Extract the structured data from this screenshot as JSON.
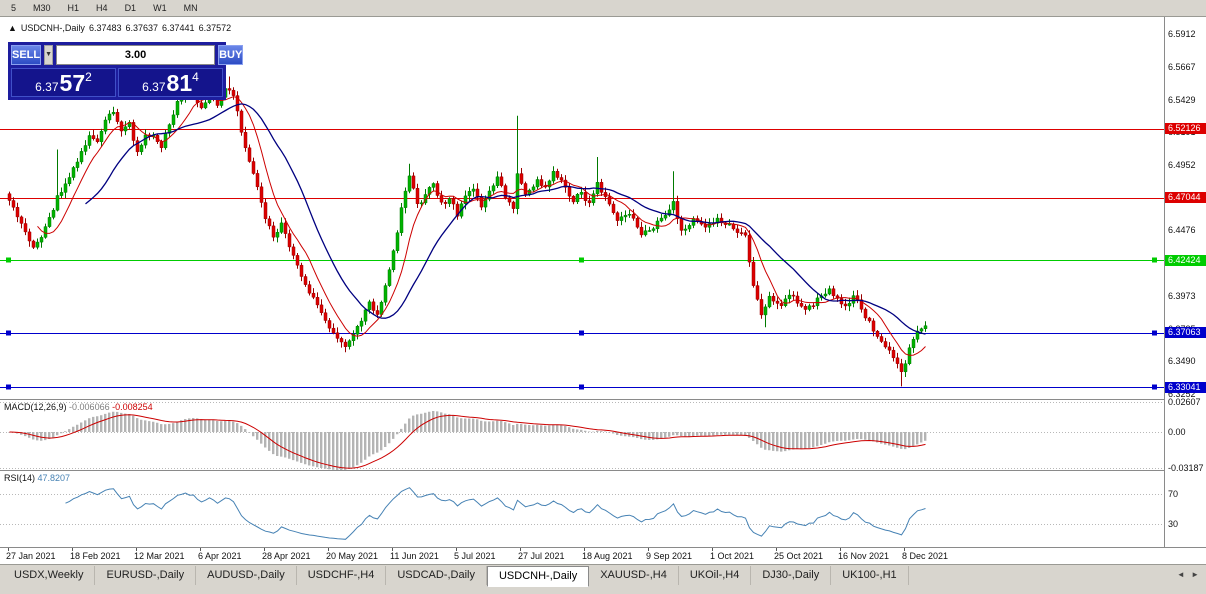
{
  "toolbar": {
    "periods": [
      "5",
      "M30",
      "H1",
      "H4",
      "D1",
      "W1",
      "MN"
    ]
  },
  "chart": {
    "collapse_icon": "▲",
    "symbol_period": "USDCNH-,Daily",
    "open": "6.37483",
    "high": "6.37637",
    "low": "6.37441",
    "close": "6.37572",
    "price_ticks": [
      "6.5912",
      "6.5667",
      "6.5429",
      "6.5191",
      "6.4952",
      "6.4714",
      "6.4476",
      "6.4238",
      "6.3973",
      "6.3735",
      "6.3490",
      "6.3252"
    ],
    "levels": [
      {
        "value": "6.52126",
        "price": 6.52126,
        "color": "red",
        "selected": false
      },
      {
        "value": "6.47044",
        "price": 6.47044,
        "color": "red",
        "selected": false
      },
      {
        "value": "6.42424",
        "price": 6.42424,
        "color": "green",
        "selected": true
      },
      {
        "value": "6.37063",
        "price": 6.37063,
        "color": "blue",
        "selected": true
      },
      {
        "value": "6.33041",
        "price": 6.33041,
        "color": "blue",
        "selected": true
      }
    ],
    "dates": [
      {
        "label": "27 Jan 2021",
        "day": 0
      },
      {
        "label": "18 Feb 2021",
        "day": 16
      },
      {
        "label": "12 Mar 2021",
        "day": 32
      },
      {
        "label": "6 Apr 2021",
        "day": 48
      },
      {
        "label": "28 Apr 2021",
        "day": 64
      },
      {
        "label": "20 May 2021",
        "day": 80
      },
      {
        "label": "11 Jun 2021",
        "day": 96
      },
      {
        "label": "5 Jul 2021",
        "day": 112
      },
      {
        "label": "27 Jul 2021",
        "day": 128
      },
      {
        "label": "18 Aug 2021",
        "day": 144
      },
      {
        "label": "9 Sep 2021",
        "day": 160
      },
      {
        "label": "1 Oct 2021",
        "day": 176
      },
      {
        "label": "25 Oct 2021",
        "day": 192
      },
      {
        "label": "16 Nov 2021",
        "day": 208
      },
      {
        "label": "8 Dec 2021",
        "day": 224
      }
    ]
  },
  "trade_widget": {
    "sell_label": "SELL",
    "buy_label": "BUY",
    "volume": "3.00",
    "spin_icon": "▼",
    "sell_price": {
      "prefix": "6.37",
      "big": "57",
      "sup": "2"
    },
    "buy_price": {
      "prefix": "6.37",
      "big": "81",
      "sup": "4"
    }
  },
  "macd": {
    "name": "MACD(12,26,9)",
    "value_main": "-0.006066",
    "value_signal": "-0.008254",
    "axis": [
      {
        "label": "0.02607",
        "value": 0.02607
      },
      {
        "label": "0.00",
        "value": 0
      },
      {
        "label": "-0.03187",
        "value": -0.03187
      }
    ],
    "fast": 12,
    "slow": 26,
    "signal_period": 9
  },
  "rsi": {
    "name": "RSI(14)",
    "value": "47.8207",
    "axis": [
      {
        "label": "70",
        "value": 70
      },
      {
        "label": "30",
        "value": 30
      }
    ],
    "period": 14
  },
  "tabs": [
    {
      "label": "USDX,Weekly",
      "active": false
    },
    {
      "label": "EURUSD-,Daily",
      "active": false
    },
    {
      "label": "AUDUSD-,Daily",
      "active": false
    },
    {
      "label": "USDCHF-,H4",
      "active": false
    },
    {
      "label": "USDCAD-,Daily",
      "active": false
    },
    {
      "label": "USDCNH-,Daily",
      "active": true
    },
    {
      "label": "XAUUSD-,H4",
      "active": false
    },
    {
      "label": "UKOil-,H4",
      "active": false
    },
    {
      "label": "DJ30-,Daily",
      "active": false
    },
    {
      "label": "UK100-,H1",
      "active": false
    }
  ],
  "tab_scroll": {
    "left": "◄",
    "right": "►"
  },
  "colors": {
    "up": "#00b300",
    "up_dark": "#007a00",
    "down": "#dd0000",
    "down_dark": "#990000",
    "ma_fast": "#cc0000",
    "ma_slow": "#000080",
    "hist": "#b4b4b4",
    "signal": "#cc0000",
    "rsi": "#4682b4",
    "red": "#dd0000",
    "green": "#00cc00",
    "blue": "#0000cc",
    "grid_dot": "#b8b8b8"
  },
  "chart_data": {
    "type": "candlestick",
    "symbol": "USDCNH",
    "timeframe": "Daily",
    "count": 230,
    "last_close": 6.37572,
    "price_top": 6.604,
    "price_bottom": 6.3215,
    "seed": 97531,
    "anchors": [
      [
        0,
        6.467
      ],
      [
        3,
        6.452
      ],
      [
        6,
        6.432
      ],
      [
        9,
        6.447
      ],
      [
        12,
        6.47
      ],
      [
        14,
        6.48
      ],
      [
        16,
        6.492
      ],
      [
        18,
        6.505
      ],
      [
        20,
        6.515
      ],
      [
        22,
        6.512
      ],
      [
        24,
        6.528
      ],
      [
        26,
        6.535
      ],
      [
        28,
        6.52
      ],
      [
        30,
        6.526
      ],
      [
        32,
        6.503
      ],
      [
        34,
        6.515
      ],
      [
        36,
        6.515
      ],
      [
        38,
        6.508
      ],
      [
        40,
        6.525
      ],
      [
        42,
        6.54
      ],
      [
        44,
        6.548
      ],
      [
        46,
        6.545
      ],
      [
        48,
        6.535
      ],
      [
        50,
        6.545
      ],
      [
        52,
        6.54
      ],
      [
        54,
        6.552
      ],
      [
        56,
        6.545
      ],
      [
        58,
        6.52
      ],
      [
        60,
        6.498
      ],
      [
        62,
        6.478
      ],
      [
        64,
        6.455
      ],
      [
        66,
        6.442
      ],
      [
        68,
        6.45
      ],
      [
        70,
        6.435
      ],
      [
        72,
        6.42
      ],
      [
        74,
        6.408
      ],
      [
        76,
        6.395
      ],
      [
        78,
        6.385
      ],
      [
        80,
        6.375
      ],
      [
        82,
        6.365
      ],
      [
        84,
        6.36
      ],
      [
        86,
        6.368
      ],
      [
        88,
        6.38
      ],
      [
        90,
        6.392
      ],
      [
        92,
        6.385
      ],
      [
        94,
        6.405
      ],
      [
        96,
        6.43
      ],
      [
        98,
        6.462
      ],
      [
        100,
        6.488
      ],
      [
        102,
        6.465
      ],
      [
        104,
        6.472
      ],
      [
        106,
        6.482
      ],
      [
        108,
        6.465
      ],
      [
        110,
        6.47
      ],
      [
        112,
        6.458
      ],
      [
        114,
        6.47
      ],
      [
        116,
        6.478
      ],
      [
        118,
        6.464
      ],
      [
        120,
        6.474
      ],
      [
        122,
        6.486
      ],
      [
        124,
        6.472
      ],
      [
        126,
        6.464
      ],
      [
        127,
        6.49
      ],
      [
        129,
        6.472
      ],
      [
        132,
        6.482
      ],
      [
        134,
        6.478
      ],
      [
        136,
        6.49
      ],
      [
        139,
        6.478
      ],
      [
        141,
        6.468
      ],
      [
        143,
        6.475
      ],
      [
        145,
        6.465
      ],
      [
        147,
        6.482
      ],
      [
        149,
        6.47
      ],
      [
        152,
        6.452
      ],
      [
        155,
        6.46
      ],
      [
        158,
        6.442
      ],
      [
        161,
        6.448
      ],
      [
        164,
        6.458
      ],
      [
        166,
        6.468
      ],
      [
        168,
        6.445
      ],
      [
        171,
        6.455
      ],
      [
        174,
        6.448
      ],
      [
        177,
        6.455
      ],
      [
        181,
        6.448
      ],
      [
        184,
        6.442
      ],
      [
        186,
        6.405
      ],
      [
        188,
        6.385
      ],
      [
        190,
        6.398
      ],
      [
        193,
        6.39
      ],
      [
        195,
        6.4
      ],
      [
        197,
        6.394
      ],
      [
        199,
        6.386
      ],
      [
        201,
        6.392
      ],
      [
        203,
        6.398
      ],
      [
        205,
        6.402
      ],
      [
        207,
        6.396
      ],
      [
        209,
        6.39
      ],
      [
        211,
        6.398
      ],
      [
        213,
        6.388
      ],
      [
        215,
        6.378
      ],
      [
        217,
        6.368
      ],
      [
        219,
        6.36
      ],
      [
        221,
        6.352
      ],
      [
        223,
        6.34
      ],
      [
        225,
        6.358
      ],
      [
        227,
        6.37
      ],
      [
        229,
        6.3757
      ]
    ],
    "wick_events": {
      "12": {
        "h": 6.506
      },
      "55": {
        "h": 6.56
      },
      "84": {
        "l": 6.356
      },
      "100": {
        "h": 6.4955
      },
      "127": {
        "h": 6.531
      },
      "147": {
        "h": 6.5005
      },
      "166": {
        "h": 6.49
      },
      "189": {
        "l": 6.3745
      },
      "223": {
        "l": 6.3308
      }
    },
    "horizontal_levels": [
      6.52126,
      6.47044,
      6.42424,
      6.37063,
      6.33041
    ],
    "overlays": [
      {
        "type": "sma",
        "period": 8,
        "color_key": "ma_fast"
      },
      {
        "type": "sma",
        "period": 20,
        "color_key": "ma_slow"
      }
    ]
  }
}
